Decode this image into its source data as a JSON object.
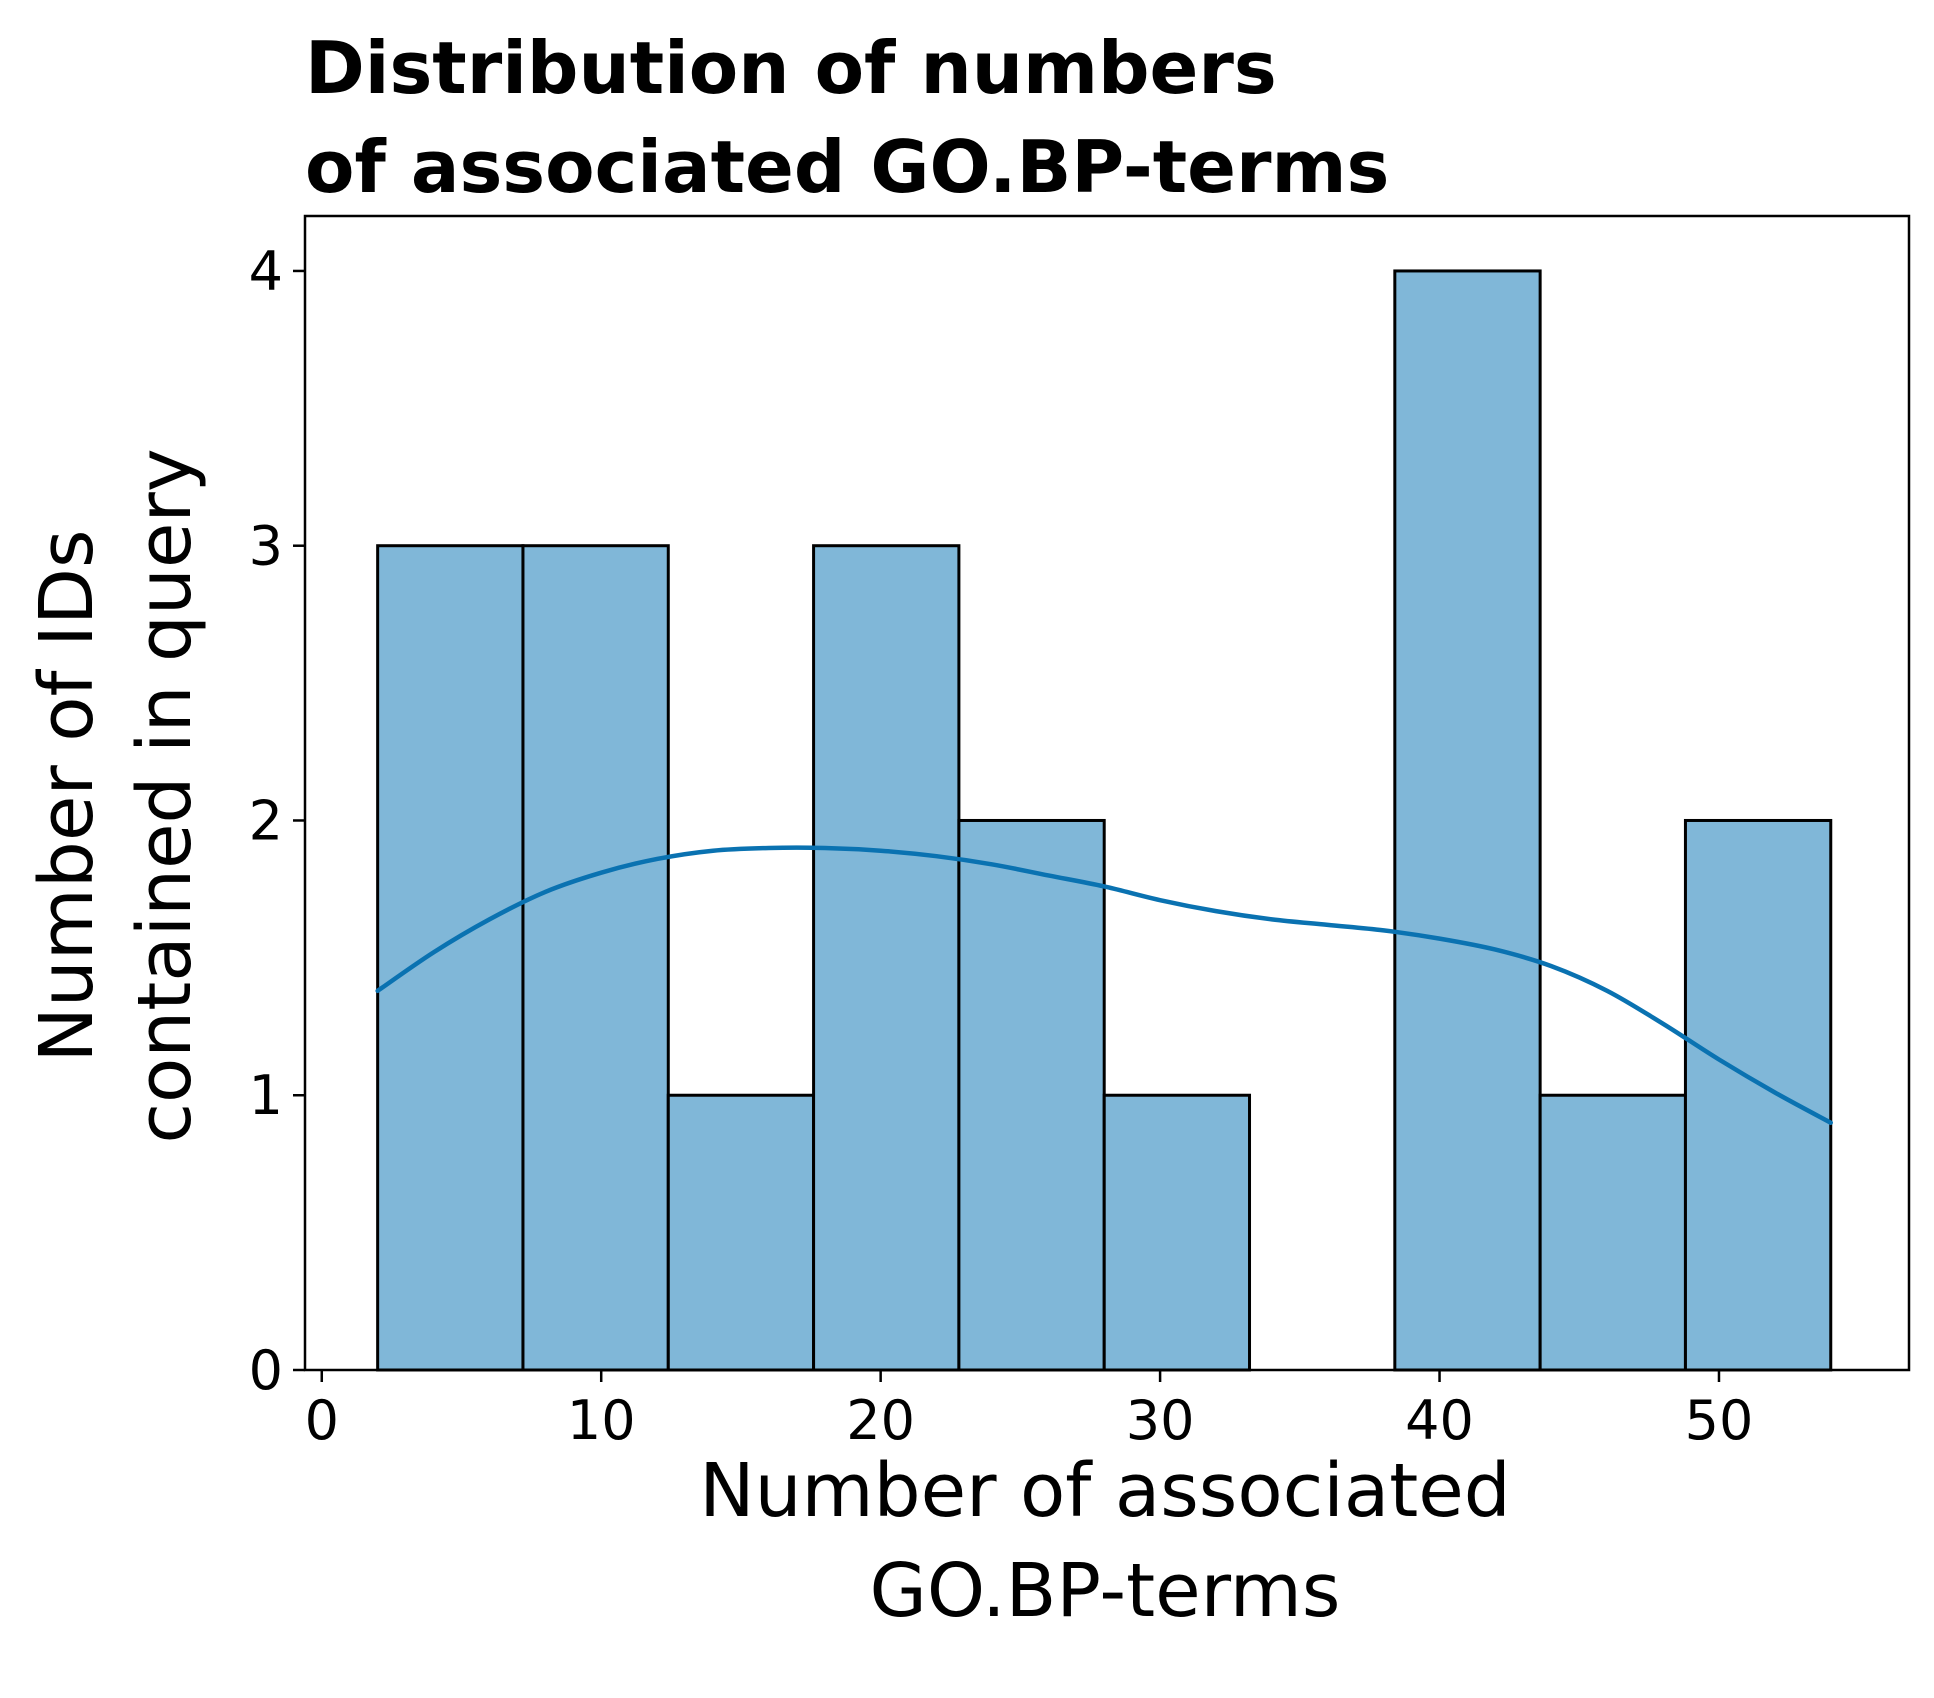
{
  "chart_data": {
    "type": "bar",
    "subtype": "histogram_with_kde",
    "title": [
      "Distribution of numbers",
      "of associated GO.BP-terms"
    ],
    "xlabel": [
      "Number of associated",
      "GO.BP-terms"
    ],
    "ylabel": [
      "Number of IDs",
      "contained in query"
    ],
    "xlim": [
      -0.6,
      56.8
    ],
    "ylim": [
      0,
      4.2
    ],
    "x_ticks": [
      0,
      10,
      20,
      30,
      40,
      50
    ],
    "x_tick_labels": [
      "0",
      "10",
      "20",
      "30",
      "40",
      "50"
    ],
    "y_ticks": [
      0,
      1,
      2,
      3,
      4
    ],
    "y_tick_labels": [
      "0",
      "1",
      "2",
      "3",
      "4"
    ],
    "grid": false,
    "bins": [
      {
        "x0": 2.0,
        "x1": 7.2,
        "count": 3
      },
      {
        "x0": 7.2,
        "x1": 12.4,
        "count": 3
      },
      {
        "x0": 12.4,
        "x1": 17.6,
        "count": 1
      },
      {
        "x0": 17.6,
        "x1": 22.8,
        "count": 3
      },
      {
        "x0": 22.8,
        "x1": 28.0,
        "count": 2
      },
      {
        "x0": 28.0,
        "x1": 33.2,
        "count": 1
      },
      {
        "x0": 33.2,
        "x1": 38.4,
        "count": 0
      },
      {
        "x0": 38.4,
        "x1": 43.6,
        "count": 4
      },
      {
        "x0": 43.6,
        "x1": 48.8,
        "count": 1
      },
      {
        "x0": 48.8,
        "x1": 54.0,
        "count": 2
      }
    ],
    "kde": {
      "x": [
        2,
        4,
        6,
        8,
        10,
        12,
        14,
        16,
        18,
        20,
        22,
        24,
        26,
        28,
        30,
        32,
        34,
        36,
        38,
        40,
        42,
        44,
        46,
        48,
        50,
        52,
        54
      ],
      "y": [
        1.38,
        1.52,
        1.64,
        1.74,
        1.81,
        1.86,
        1.89,
        1.9,
        1.9,
        1.89,
        1.87,
        1.84,
        1.8,
        1.76,
        1.71,
        1.67,
        1.64,
        1.62,
        1.6,
        1.57,
        1.53,
        1.47,
        1.38,
        1.26,
        1.13,
        1.01,
        0.9
      ]
    },
    "colors": {
      "bar_fill": "#80b7d8",
      "bar_edge": "#000000",
      "kde_line": "#0a72b1",
      "axis": "#000000"
    }
  }
}
